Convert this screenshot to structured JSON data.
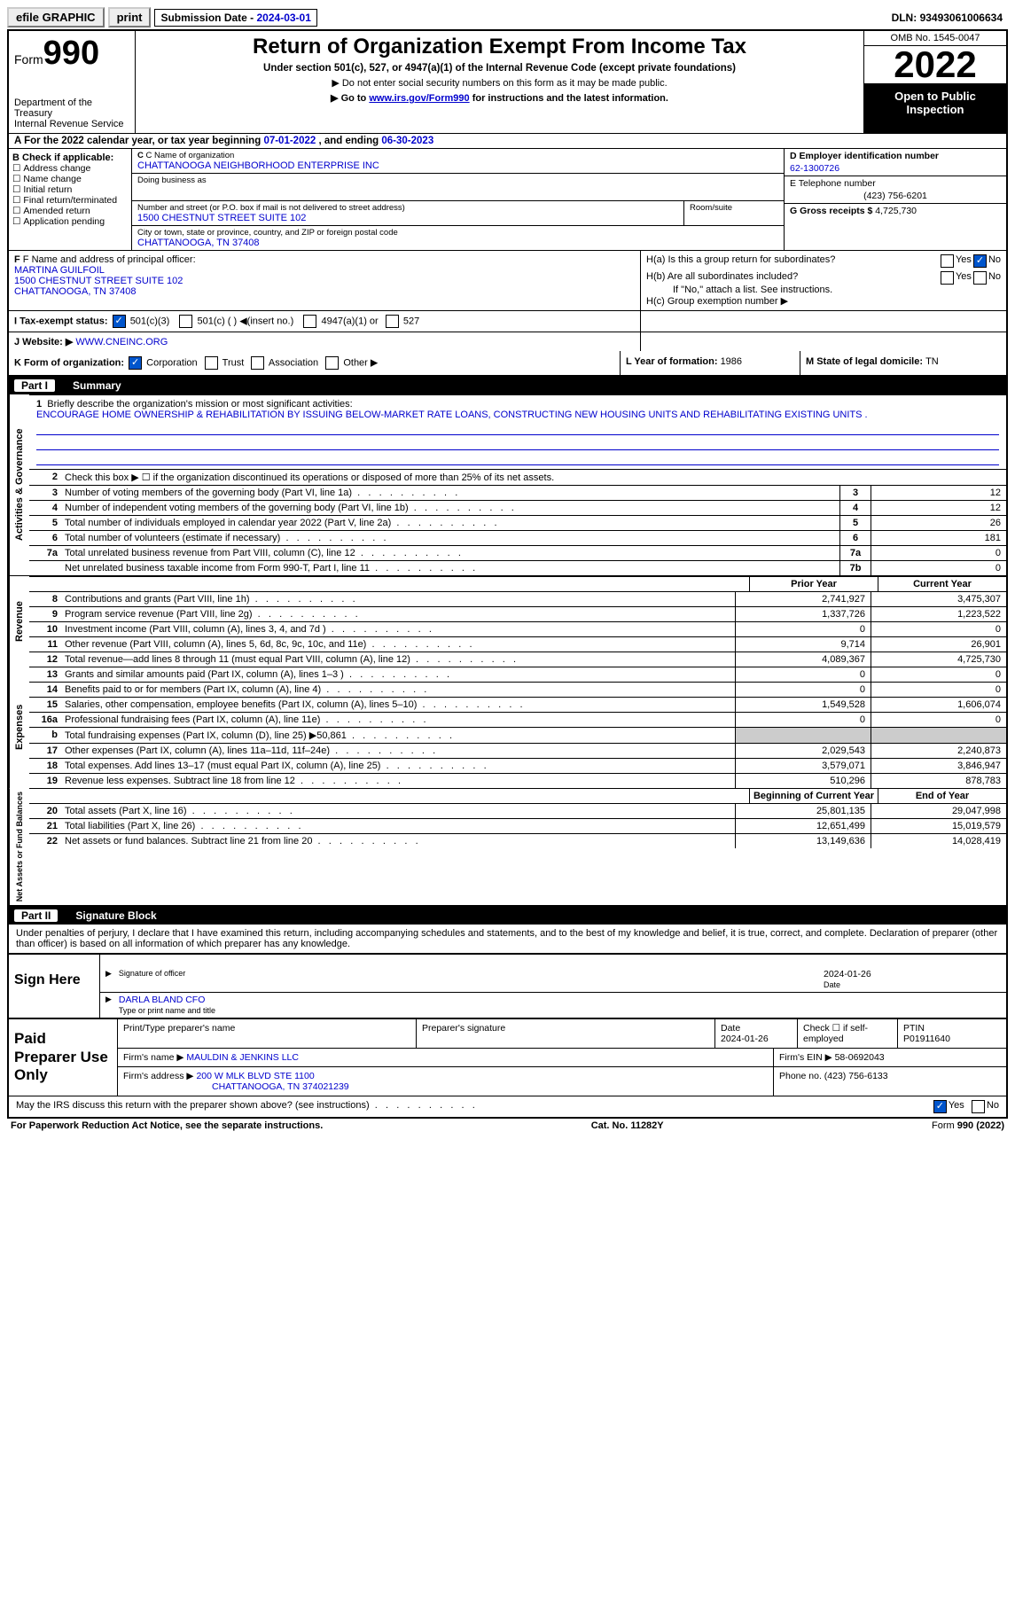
{
  "topbar": {
    "efile": "efile GRAPHIC",
    "print": "print",
    "sub_label": "Submission Date - ",
    "sub_date": "2024-03-01",
    "dln_label": "DLN: ",
    "dln": "93493061006634"
  },
  "header": {
    "form_word": "Form",
    "form_num": "990",
    "dept": "Department of the Treasury",
    "irs": "Internal Revenue Service",
    "title": "Return of Organization Exempt From Income Tax",
    "subtitle": "Under section 501(c), 527, or 4947(a)(1) of the Internal Revenue Code (except private foundations)",
    "note1": "▶ Do not enter social security numbers on this form as it may be made public.",
    "note2_pre": "▶ Go to ",
    "note2_link": "www.irs.gov/Form990",
    "note2_post": " for instructions and the latest information.",
    "omb": "OMB No. 1545-0047",
    "year": "2022",
    "inspect": "Open to Public Inspection"
  },
  "rowA": {
    "text_pre": "A For the 2022 calendar year, or tax year beginning ",
    "begin": "07-01-2022",
    "mid": "   , and ending ",
    "end": "06-30-2023"
  },
  "blkB": {
    "label": "B Check if applicable:",
    "items": [
      "Address change",
      "Name change",
      "Initial return",
      "Final return/terminated",
      "Amended return",
      "Application pending"
    ]
  },
  "blkC": {
    "name_label": "C Name of organization",
    "name": "CHATTANOOGA NEIGHBORHOOD ENTERPRISE INC",
    "dba_label": "Doing business as",
    "street_label": "Number and street (or P.O. box if mail is not delivered to street address)",
    "street": "1500 CHESTNUT STREET SUITE 102",
    "room_label": "Room/suite",
    "city_label": "City or town, state or province, country, and ZIP or foreign postal code",
    "city": "CHATTANOOGA, TN  37408"
  },
  "blkD": {
    "ein_label": "D Employer identification number",
    "ein": "62-1300726",
    "tel_label": "E Telephone number",
    "tel": "(423) 756-6201",
    "gross_label": "G Gross receipts $ ",
    "gross": "4,725,730"
  },
  "blkF": {
    "label": "F Name and address of principal officer:",
    "name": "MARTINA GUILFOIL",
    "addr1": "1500 CHESTNUT STREET SUITE 102",
    "addr2": "CHATTANOOGA, TN  37408"
  },
  "blkH": {
    "ha": "H(a)  Is this a group return for subordinates?",
    "hb": "H(b)  Are all subordinates included?",
    "hb_note": "If \"No,\" attach a list. See instructions.",
    "hc": "H(c)  Group exemption number ▶",
    "yes": "Yes",
    "no": "No"
  },
  "rowI": {
    "label": "I    Tax-exempt status:",
    "c3": "501(c)(3)",
    "c_other": "501(c) (  ) ◀(insert no.)",
    "a1": "4947(a)(1) or",
    "s527": "527"
  },
  "rowJ": {
    "label": "J    Website: ▶  ",
    "val": "WWW.CNEINC.ORG"
  },
  "rowK": {
    "label": "K Form of organization:",
    "corp": "Corporation",
    "trust": "Trust",
    "assoc": "Association",
    "other": "Other ▶",
    "L": "L Year of formation: ",
    "L_val": "1986",
    "M": "M State of legal domicile: ",
    "M_val": "TN"
  },
  "part1": {
    "num": "Part I",
    "title": "Summary"
  },
  "mission": {
    "label": "Briefly describe the organization's mission or most significant activities:",
    "text": "ENCOURAGE HOME OWNERSHIP & REHABILITATION BY ISSUING BELOW-MARKET RATE LOANS, CONSTRUCTING NEW HOUSING UNITS AND REHABILITATING EXISTING UNITS ."
  },
  "lines": {
    "l2": "Check this box ▶ ☐  if the organization discontinued its operations or disposed of more than 25% of its net assets.",
    "l3": {
      "d": "Number of voting members of the governing body (Part VI, line 1a)",
      "b": "3",
      "v": "12"
    },
    "l4": {
      "d": "Number of independent voting members of the governing body (Part VI, line 1b)",
      "b": "4",
      "v": "12"
    },
    "l5": {
      "d": "Total number of individuals employed in calendar year 2022 (Part V, line 2a)",
      "b": "5",
      "v": "26"
    },
    "l6": {
      "d": "Total number of volunteers (estimate if necessary)",
      "b": "6",
      "v": "181"
    },
    "l7a": {
      "d": "Total unrelated business revenue from Part VIII, column (C), line 12",
      "b": "7a",
      "v": "0"
    },
    "l7b": {
      "d": "Net unrelated business taxable income from Form 990-T, Part I, line 11",
      "b": "7b",
      "v": "0"
    }
  },
  "cols": {
    "prior": "Prior Year",
    "current": "Current Year",
    "beg": "Beginning of Current Year",
    "end": "End of Year"
  },
  "revenue": [
    {
      "n": "8",
      "d": "Contributions and grants (Part VIII, line 1h)",
      "p": "2,741,927",
      "c": "3,475,307"
    },
    {
      "n": "9",
      "d": "Program service revenue (Part VIII, line 2g)",
      "p": "1,337,726",
      "c": "1,223,522"
    },
    {
      "n": "10",
      "d": "Investment income (Part VIII, column (A), lines 3, 4, and 7d )",
      "p": "0",
      "c": "0"
    },
    {
      "n": "11",
      "d": "Other revenue (Part VIII, column (A), lines 5, 6d, 8c, 9c, 10c, and 11e)",
      "p": "9,714",
      "c": "26,901"
    },
    {
      "n": "12",
      "d": "Total revenue—add lines 8 through 11 (must equal Part VIII, column (A), line 12)",
      "p": "4,089,367",
      "c": "4,725,730"
    }
  ],
  "expenses": [
    {
      "n": "13",
      "d": "Grants and similar amounts paid (Part IX, column (A), lines 1–3 )",
      "p": "0",
      "c": "0"
    },
    {
      "n": "14",
      "d": "Benefits paid to or for members (Part IX, column (A), line 4)",
      "p": "0",
      "c": "0"
    },
    {
      "n": "15",
      "d": "Salaries, other compensation, employee benefits (Part IX, column (A), lines 5–10)",
      "p": "1,549,528",
      "c": "1,606,074"
    },
    {
      "n": "16a",
      "d": "Professional fundraising fees (Part IX, column (A), line 11e)",
      "p": "0",
      "c": "0"
    },
    {
      "n": "b",
      "d": "Total fundraising expenses (Part IX, column (D), line 25) ▶50,861",
      "p": "",
      "c": "",
      "shade": true
    },
    {
      "n": "17",
      "d": "Other expenses (Part IX, column (A), lines 11a–11d, 11f–24e)",
      "p": "2,029,543",
      "c": "2,240,873"
    },
    {
      "n": "18",
      "d": "Total expenses. Add lines 13–17 (must equal Part IX, column (A), line 25)",
      "p": "3,579,071",
      "c": "3,846,947"
    },
    {
      "n": "19",
      "d": "Revenue less expenses. Subtract line 18 from line 12",
      "p": "510,296",
      "c": "878,783"
    }
  ],
  "netassets": [
    {
      "n": "20",
      "d": "Total assets (Part X, line 16)",
      "p": "25,801,135",
      "c": "29,047,998"
    },
    {
      "n": "21",
      "d": "Total liabilities (Part X, line 26)",
      "p": "12,651,499",
      "c": "15,019,579"
    },
    {
      "n": "22",
      "d": "Net assets or fund balances. Subtract line 21 from line 20",
      "p": "13,149,636",
      "c": "14,028,419"
    }
  ],
  "vtabs": {
    "gov": "Activities & Governance",
    "rev": "Revenue",
    "exp": "Expenses",
    "net": "Net Assets or Fund Balances"
  },
  "part2": {
    "num": "Part II",
    "title": "Signature Block"
  },
  "sig_intro": "Under penalties of perjury, I declare that I have examined this return, including accompanying schedules and statements, and to the best of my knowledge and belief, it is true, correct, and complete. Declaration of preparer (other than officer) is based on all information of which preparer has any knowledge.",
  "sign": {
    "here": "Sign Here",
    "sig_of": "Signature of officer",
    "date_lbl": "Date",
    "date": "2024-01-26",
    "name": "DARLA BLAND CFO",
    "type_lbl": "Type or print name and title"
  },
  "paid": {
    "title": "Paid Preparer Use Only",
    "pname_lbl": "Print/Type preparer's name",
    "psig_lbl": "Preparer's signature",
    "date_lbl": "Date",
    "date": "2024-01-26",
    "check_lbl": "Check ☐ if self-employed",
    "ptin_lbl": "PTIN",
    "ptin": "P01911640",
    "firm_name_lbl": "Firm's name    ▶ ",
    "firm_name": "MAULDIN & JENKINS LLC",
    "firm_ein_lbl": "Firm's EIN ▶ ",
    "firm_ein": "58-0692043",
    "firm_addr_lbl": "Firm's address ▶ ",
    "firm_addr": "200 W MLK BLVD STE 1100",
    "firm_city": "CHATTANOOGA, TN  374021239",
    "phone_lbl": "Phone no. ",
    "phone": "(423) 756-6133"
  },
  "discuss": {
    "q": "May the IRS discuss this return with the preparer shown above? (see instructions)",
    "yes": "Yes",
    "no": "No"
  },
  "footer": {
    "left": "For Paperwork Reduction Act Notice, see the separate instructions.",
    "mid": "Cat. No. 11282Y",
    "right": "Form 990 (2022)"
  }
}
